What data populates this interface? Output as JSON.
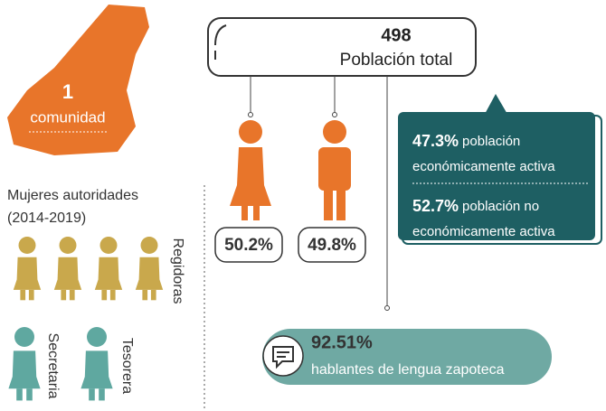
{
  "community": {
    "count": "1",
    "label": "comunidad"
  },
  "population": {
    "total": "498",
    "label": "Población total",
    "women": "50.2%",
    "men": "49.8%"
  },
  "economy": {
    "active": {
      "percent": "47.3%",
      "lines": [
        "población",
        "económicamente activa"
      ]
    },
    "inactive": {
      "percent": "52.7%",
      "lines": [
        "población no",
        "económicamente activa"
      ]
    }
  },
  "authorities": {
    "title": "Mujeres autoridades",
    "period": "(2014-2019)",
    "roles": [
      "Regidoras",
      "Secretaria",
      "Tesorera"
    ]
  },
  "language": {
    "percent": "92.51%",
    "label": "hablantes de lengua zapoteca"
  }
}
